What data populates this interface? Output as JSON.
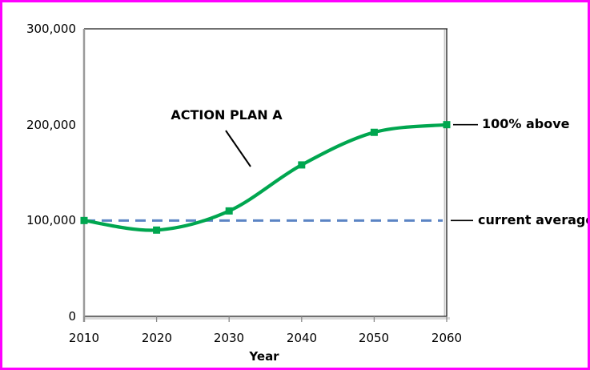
{
  "frame": {
    "border_color": "#FF00FF",
    "background_color": "#FFFFFF"
  },
  "chart_data": {
    "type": "line",
    "title": "",
    "xlabel": "Year",
    "ylabel": "",
    "x": [
      2010,
      2020,
      2030,
      2040,
      2050,
      2060
    ],
    "x_tick_labels": [
      "2010",
      "2020",
      "2030",
      "2040",
      "2050",
      "2060"
    ],
    "ylim": [
      0,
      300000
    ],
    "yticks": [
      0,
      100000,
      200000,
      300000
    ],
    "y_tick_labels": [
      "0",
      "100,000",
      "200,000",
      "300,000"
    ],
    "grid": false,
    "legend": false,
    "series": [
      {
        "name": "ACTION PLAN A",
        "type": "smooth-line",
        "color": "#00A64F",
        "marker": "square",
        "line_width": 4.2,
        "values": [
          100000,
          90000,
          110000,
          158000,
          192000,
          200000
        ]
      },
      {
        "name": "current average",
        "type": "reference-line",
        "style": "dashed",
        "color": "#5B84C4",
        "line_width": 3,
        "value": 100000
      }
    ],
    "annotations": [
      {
        "text": "ACTION PLAN A",
        "bold": true,
        "points_to": "ACTION PLAN A curve"
      },
      {
        "text": "100% above",
        "bold": true,
        "at_value": 200000
      },
      {
        "text": "current average",
        "bold": true,
        "at_value": 100000
      }
    ],
    "axis_colors": {
      "plot_border": "#1a1a1a",
      "y_axis_line": "#9a9a9a",
      "tick": "#8a8a8a",
      "shadow": "#d9d9d9",
      "leader_line": "#000000"
    }
  }
}
